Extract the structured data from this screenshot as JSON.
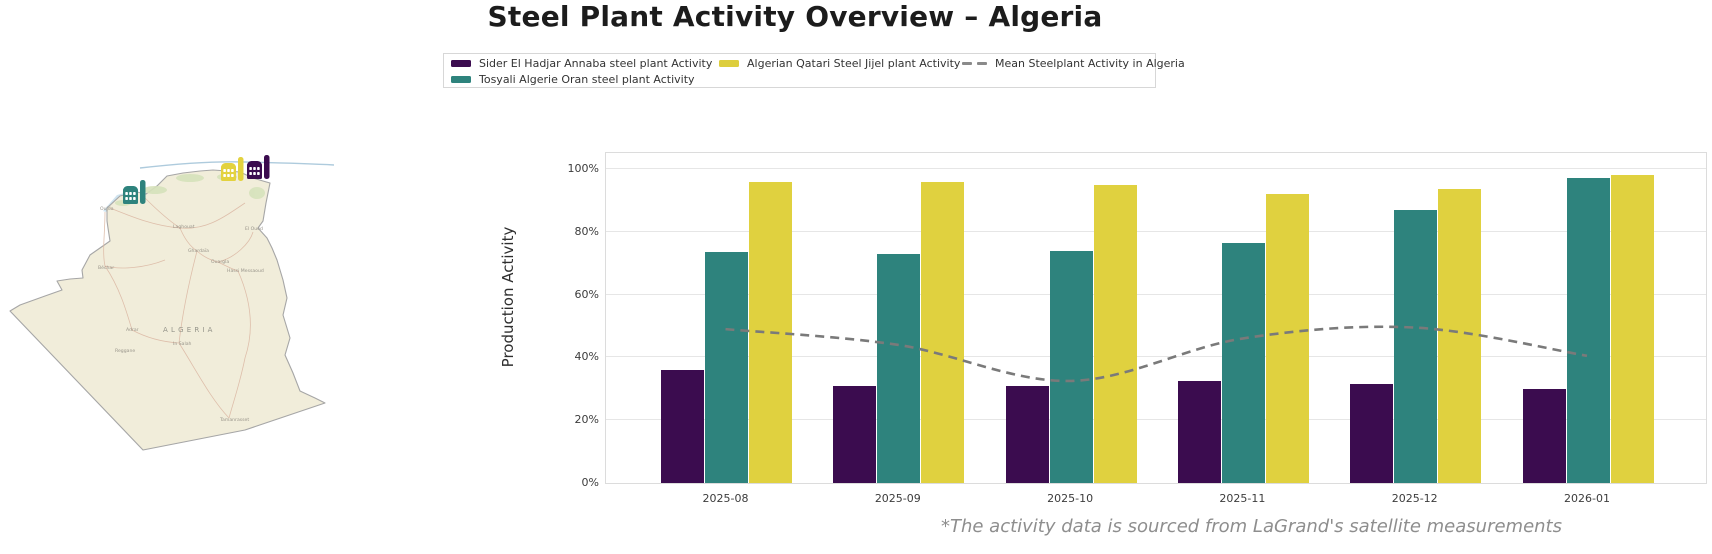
{
  "title": "Steel Plant Activity Overview – Algeria",
  "legend": {
    "items": [
      {
        "label": "Sider El Hadjar Annaba steel plant Activity",
        "color": "#3b0c4f",
        "marker": "swatch"
      },
      {
        "label": "Tosyali Algerie Oran steel plant Activity",
        "color": "#2e837d",
        "marker": "swatch"
      },
      {
        "label": "Algerian Qatari Steel Jijel plant Activity",
        "color": "#ddce3d",
        "marker": "swatch"
      },
      {
        "label": "Mean Steelplant Activity in Algeria",
        "color": "#8a8a8a",
        "marker": "dashed-line"
      }
    ]
  },
  "map": {
    "country_label": "ALGERIA",
    "land_color": "#f1edda",
    "city_labels": [
      "Oujda",
      "Béchar",
      "Laghouat",
      "Ghardaïa",
      "Ouargla",
      "Hassi Messaoud",
      "El Oued",
      "Adrar",
      "In Salah",
      "Reggane",
      "Tamanrasset"
    ],
    "factories": [
      {
        "name": "Tosyali Algerie Oran steel plant",
        "color": "#2e837d"
      },
      {
        "name": "Algerian Qatari Steel Jijel plant",
        "color": "#e3d23f"
      },
      {
        "name": "Sider El Hadjar Annaba steel plant",
        "color": "#3b0c4f"
      }
    ]
  },
  "chart_data": {
    "type": "bar",
    "categories": [
      "2025-08",
      "2025-09",
      "2025-10",
      "2025-11",
      "2025-12",
      "2026-01"
    ],
    "series": [
      {
        "name": "Sider El Hadjar Annaba steel plant Activity",
        "type": "bar",
        "color": "#3b0c4f",
        "values": [
          36,
          31,
          31,
          32.5,
          31.5,
          30
        ]
      },
      {
        "name": "Tosyali Algerie Oran steel plant Activity",
        "type": "bar",
        "color": "#2e837d",
        "values": [
          73.5,
          73,
          74,
          76.5,
          87,
          97
        ]
      },
      {
        "name": "Algerian Qatari Steel Jijel plant Activity",
        "type": "bar",
        "color": "#e0d13f",
        "values": [
          96,
          96,
          95,
          92,
          93.5,
          98
        ]
      },
      {
        "name": "Mean Steelplant Activity in Algeria",
        "type": "line",
        "color": "#7a7a7a",
        "dashed": true,
        "values": [
          49,
          44,
          32.5,
          46,
          49.5,
          40.5
        ]
      }
    ],
    "title": "Steel Plant Activity Overview – Algeria",
    "xlabel": "",
    "ylabel": "Production Activity",
    "ylim": [
      0,
      105
    ],
    "yticks": [
      "0%",
      "20%",
      "40%",
      "60%",
      "80%",
      "100%"
    ],
    "grid": true,
    "legend_position": "top-center"
  },
  "footnote": "*The activity data is sourced from LaGrand's satellite measurements"
}
